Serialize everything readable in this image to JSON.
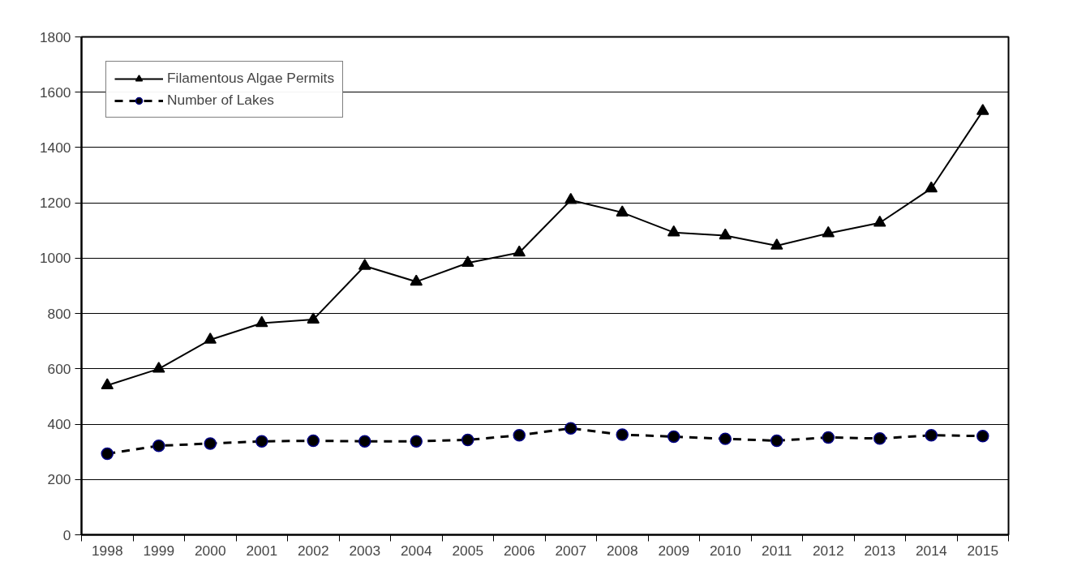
{
  "chart_data": {
    "type": "line",
    "categories": [
      "1998",
      "1999",
      "2000",
      "2001",
      "2002",
      "2003",
      "2004",
      "2005",
      "2006",
      "2007",
      "2008",
      "2009",
      "2010",
      "2011",
      "2012",
      "2013",
      "2014",
      "2015"
    ],
    "series": [
      {
        "name": "Filamentous Algae Permits",
        "color": "#000000",
        "marker": "triangle",
        "line_style": "solid",
        "values": [
          540,
          600,
          705,
          765,
          778,
          972,
          915,
          983,
          1020,
          1210,
          1165,
          1093,
          1082,
          1045,
          1090,
          1128,
          1252,
          1532
        ]
      },
      {
        "name": "Number of Lakes",
        "color": "#000000",
        "marker": "circle",
        "line_style": "dashed",
        "values": [
          293,
          322,
          330,
          338,
          340,
          338,
          338,
          343,
          360,
          385,
          362,
          355,
          347,
          340,
          352,
          348,
          360,
          357
        ]
      }
    ],
    "ylim": [
      0,
      1800
    ],
    "yticks": [
      0,
      200,
      400,
      600,
      800,
      1000,
      1200,
      1400,
      1600,
      1800
    ],
    "grid": "y",
    "legend": "top left"
  }
}
